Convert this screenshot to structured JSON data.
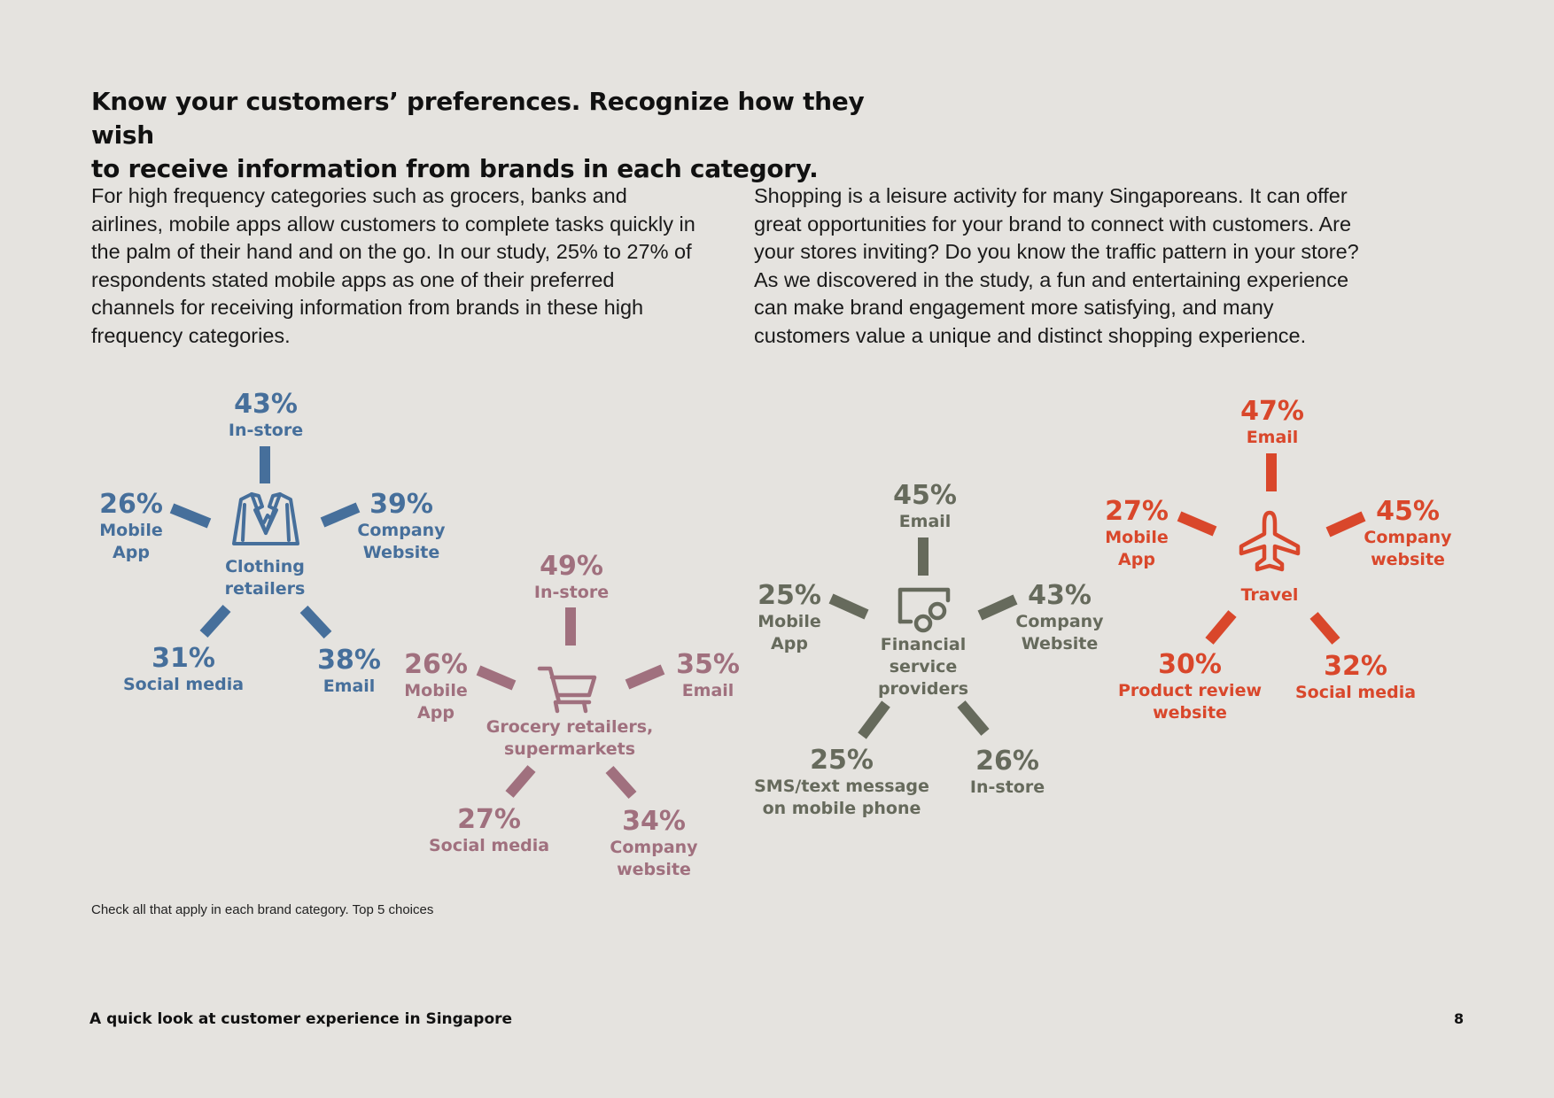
{
  "title": {
    "line1": "Know your customers’ preferences. Recognize how they wish",
    "line2": "to receive information from brands in each category."
  },
  "paragraphs": {
    "left": "For high frequency categories such as grocers, banks and airlines, mobile apps allow customers to complete tasks quickly in the palm of their hand and on the go. In our study, 25% to 27% of respondents stated mobile apps as one of their preferred channels for receiving information from brands in these high frequency categories.",
    "right": "Shopping is a leisure activity for many Singaporeans. It can offer great opportunities for your brand to connect with customers. Are your stores inviting? Do you know the traffic pattern in your store? As we discovered in the study, a fun and entertaining experience can make brand engagement more satisfying, and many customers value a unique and distinct shopping experience."
  },
  "note": "Check all that apply in each brand category. Top 5 choices",
  "footer": {
    "title": "A quick look at customer experience in Singapore",
    "page_number": "8"
  },
  "colors": {
    "clothing": "#466f9b",
    "grocery": "#a0707e",
    "financial": "#666a5c",
    "travel": "#d9472b"
  },
  "chart_data": [
    {
      "type": "radial",
      "category": "Clothing retailers",
      "icon": "blazer-icon",
      "color_key": "clothing",
      "center_lines": [
        "Clothing",
        "retailers"
      ],
      "channels": [
        {
          "value": "43%",
          "label_lines": [
            "In-store"
          ]
        },
        {
          "value": "39%",
          "label_lines": [
            "Company",
            "Website"
          ]
        },
        {
          "value": "38%",
          "label_lines": [
            "Email"
          ]
        },
        {
          "value": "31%",
          "label_lines": [
            "Social media"
          ]
        },
        {
          "value": "26%",
          "label_lines": [
            "Mobile",
            "App"
          ]
        }
      ]
    },
    {
      "type": "radial",
      "category": "Grocery retailers, supermarkets",
      "icon": "shopping-cart-icon",
      "color_key": "grocery",
      "center_lines": [
        "Grocery retailers,",
        "supermarkets"
      ],
      "channels": [
        {
          "value": "49%",
          "label_lines": [
            "In-store"
          ]
        },
        {
          "value": "35%",
          "label_lines": [
            "Email"
          ]
        },
        {
          "value": "34%",
          "label_lines": [
            "Company",
            "website"
          ]
        },
        {
          "value": "27%",
          "label_lines": [
            "Social media"
          ]
        },
        {
          "value": "26%",
          "label_lines": [
            "Mobile",
            "App"
          ]
        }
      ]
    },
    {
      "type": "radial",
      "category": "Financial service providers",
      "icon": "payment-terminal-icon",
      "color_key": "financial",
      "center_lines": [
        "Financial",
        "service",
        "providers"
      ],
      "channels": [
        {
          "value": "45%",
          "label_lines": [
            "Email"
          ]
        },
        {
          "value": "43%",
          "label_lines": [
            "Company",
            "Website"
          ]
        },
        {
          "value": "26%",
          "label_lines": [
            "In-store"
          ]
        },
        {
          "value": "25%",
          "label_lines": [
            "SMS/text message",
            "on mobile phone"
          ]
        },
        {
          "value": "25%",
          "label_lines": [
            "Mobile",
            "App"
          ]
        }
      ]
    },
    {
      "type": "radial",
      "category": "Travel",
      "icon": "airplane-icon",
      "color_key": "travel",
      "center_lines": [
        "Travel"
      ],
      "channels": [
        {
          "value": "47%",
          "label_lines": [
            "Email"
          ]
        },
        {
          "value": "45%",
          "label_lines": [
            "Company",
            "website"
          ]
        },
        {
          "value": "32%",
          "label_lines": [
            "Social media"
          ]
        },
        {
          "value": "30%",
          "label_lines": [
            "Product review",
            "website"
          ]
        },
        {
          "value": "27%",
          "label_lines": [
            "Mobile",
            "App"
          ]
        }
      ]
    }
  ]
}
